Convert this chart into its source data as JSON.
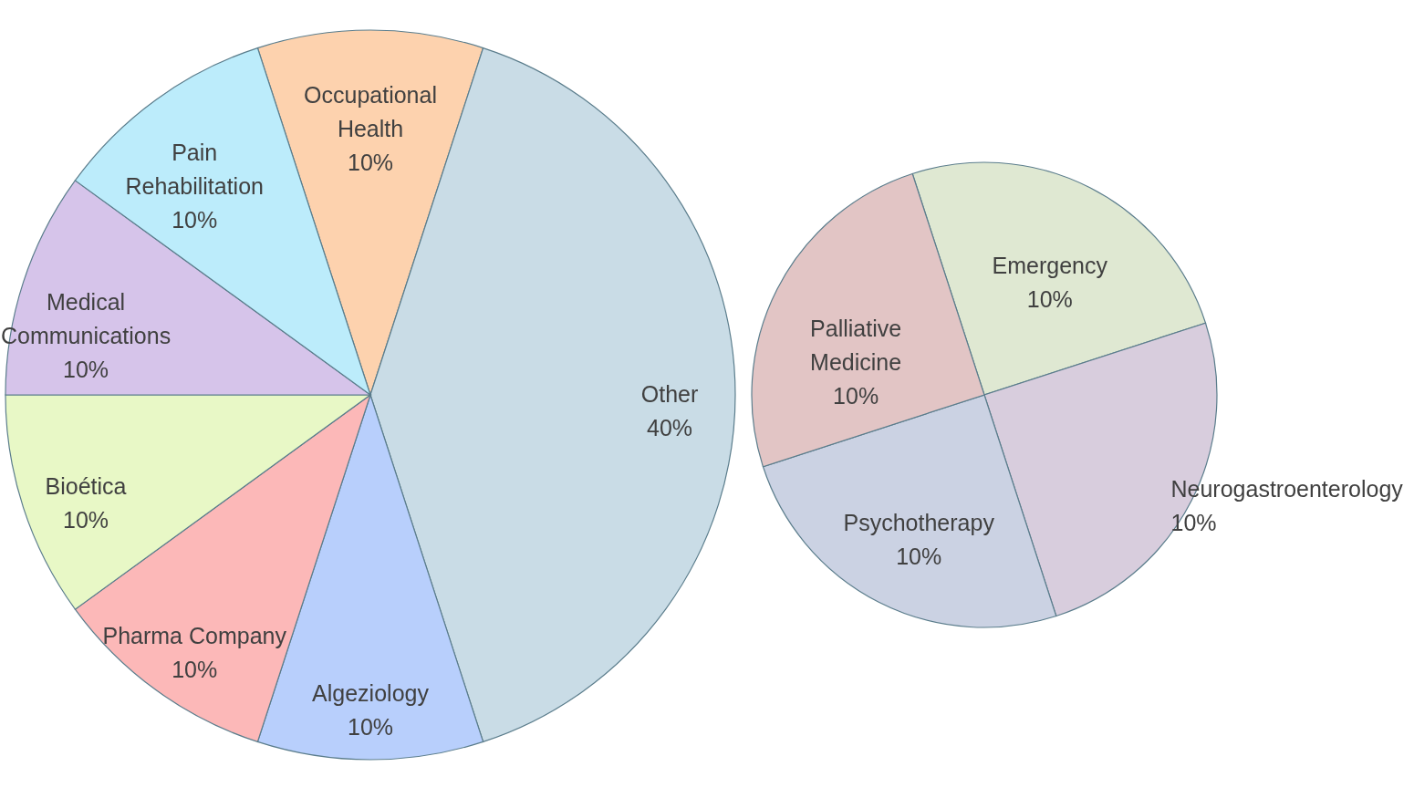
{
  "chart_data": [
    {
      "type": "pie",
      "categories": [
        "Occupational Health",
        "Other",
        "Algeziology",
        "Pharma Company",
        "Bioética",
        "Medical Communications",
        "Pain Rehabilitation"
      ],
      "values": [
        10,
        40,
        10,
        10,
        10,
        10,
        10
      ],
      "value_labels": [
        "10%",
        "40%",
        "10%",
        "10%",
        "10%",
        "10%",
        "10%"
      ],
      "colors": [
        "#fdd2ae",
        "#c9dce6",
        "#b8cffc",
        "#fcb8b8",
        "#e8f8c6",
        "#d6c4ea",
        "#bcecfb"
      ]
    },
    {
      "type": "pie",
      "categories": [
        "Emergency",
        "Neurogastroenterology",
        "Psychotherapy",
        "Palliative Medicine"
      ],
      "values": [
        10,
        10,
        10,
        10
      ],
      "value_labels": [
        "10%",
        "10%",
        "10%",
        "10%"
      ],
      "colors": [
        "#dfe8d2",
        "#d8cddd",
        "#cbd2e3",
        "#e2c5c5"
      ]
    }
  ]
}
